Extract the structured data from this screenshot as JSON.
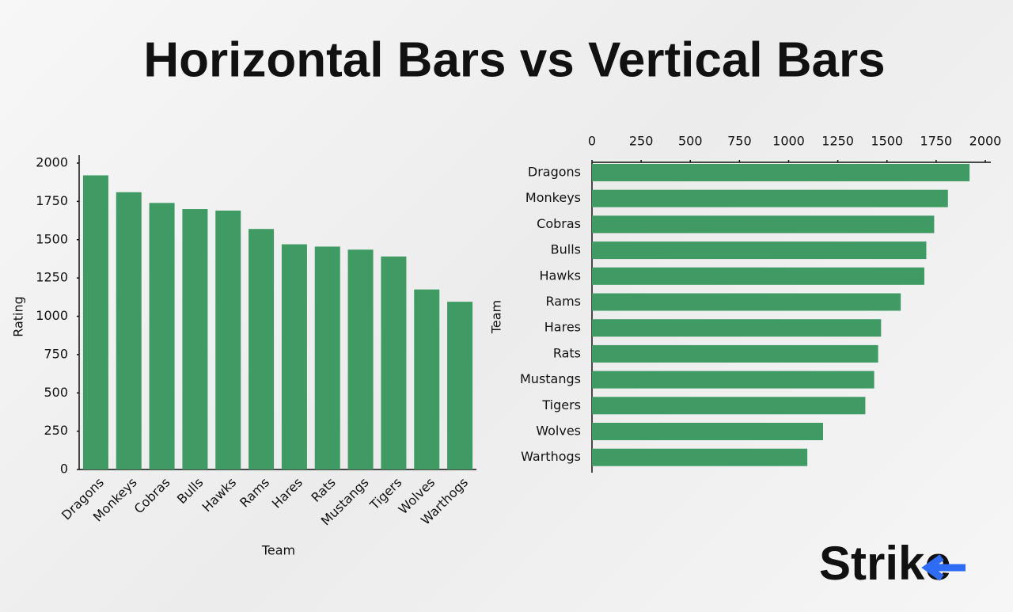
{
  "title": "Horizontal Bars vs Vertical Bars",
  "logo": "Strike",
  "chart_data": [
    {
      "type": "bar",
      "categories": [
        "Dragons",
        "Monkeys",
        "Cobras",
        "Bulls",
        "Hawks",
        "Rams",
        "Hares",
        "Rats",
        "Mustangs",
        "Tigers",
        "Wolves",
        "Warthogs"
      ],
      "values": [
        1920,
        1810,
        1740,
        1700,
        1690,
        1570,
        1470,
        1455,
        1435,
        1390,
        1175,
        1095
      ],
      "color": "#3f9a63",
      "xlabel": "Team",
      "ylabel": "Rating",
      "ylim": [
        0,
        2000
      ],
      "yticks": [
        0,
        250,
        500,
        750,
        1000,
        1250,
        1500,
        1750,
        2000
      ]
    },
    {
      "type": "barh",
      "categories": [
        "Dragons",
        "Monkeys",
        "Cobras",
        "Bulls",
        "Hawks",
        "Rams",
        "Hares",
        "Rats",
        "Mustangs",
        "Tigers",
        "Wolves",
        "Warthogs"
      ],
      "values": [
        1920,
        1810,
        1740,
        1700,
        1690,
        1570,
        1470,
        1455,
        1435,
        1390,
        1175,
        1095
      ],
      "color": "#3f9a63",
      "ylabel": "Team",
      "xlim": [
        0,
        2000
      ],
      "xticks": [
        0,
        250,
        500,
        750,
        1000,
        1250,
        1500,
        1750,
        2000
      ]
    }
  ]
}
